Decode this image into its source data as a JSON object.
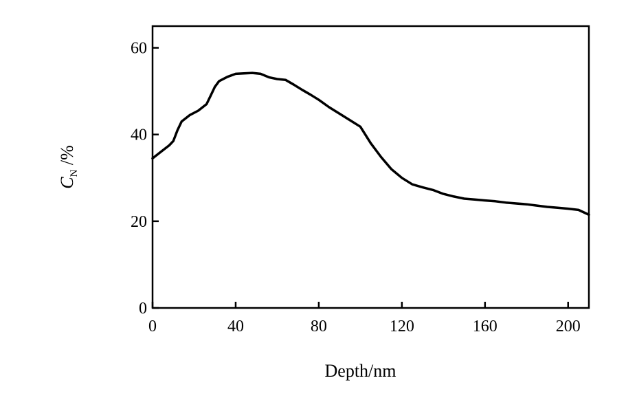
{
  "chart_data": {
    "type": "line",
    "title": "",
    "xlabel": "Depth/nm",
    "ylabel_main": "C",
    "ylabel_sub": "N",
    "ylabel_rest": " /%",
    "xlim": [
      0,
      210
    ],
    "ylim": [
      0,
      65
    ],
    "x_ticks": [
      0,
      40,
      80,
      120,
      160,
      200
    ],
    "y_ticks": [
      0,
      20,
      40,
      60
    ],
    "grid": false,
    "legend": "none",
    "line_color": "#000000",
    "series": [
      {
        "x": [
          0,
          4,
          8,
          10,
          12,
          14,
          18,
          22,
          26,
          28,
          30,
          32,
          36,
          40,
          44,
          48,
          52,
          56,
          60,
          64,
          68,
          72,
          76,
          80,
          85,
          90,
          95,
          100,
          105,
          110,
          115,
          120,
          125,
          130,
          135,
          140,
          145,
          150,
          155,
          160,
          165,
          170,
          175,
          180,
          185,
          190,
          195,
          200,
          205,
          210
        ],
        "y": [
          34.5,
          36,
          37.5,
          38.5,
          41,
          43,
          44.5,
          45.5,
          47,
          49,
          51,
          52.3,
          53.3,
          54,
          54.1,
          54.2,
          54,
          53.2,
          52.8,
          52.6,
          51.5,
          50.3,
          49.2,
          48,
          46.3,
          44.8,
          43.3,
          41.8,
          38,
          34.8,
          32,
          30,
          28.5,
          27.8,
          27.2,
          26.3,
          25.7,
          25.2,
          25,
          24.8,
          24.6,
          24.3,
          24.1,
          23.9,
          23.6,
          23.3,
          23.1,
          22.9,
          22.6,
          21.5
        ]
      }
    ]
  }
}
